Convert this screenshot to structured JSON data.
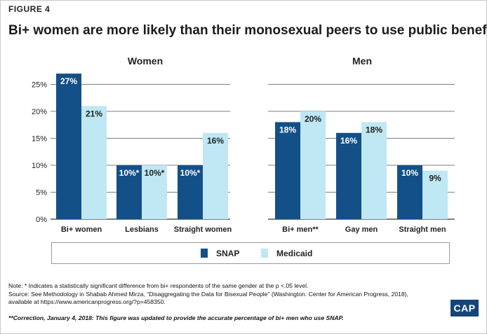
{
  "figure_label": "FIGURE 4",
  "title": "Bi+ women are more likely than their monosexual peers to use public benefits",
  "colors": {
    "snap": "#135087",
    "medicaid": "#bfe7f4",
    "grid": "#555555",
    "logo_bg": "#13467a"
  },
  "chart_data": [
    {
      "type": "bar",
      "title": "Women",
      "categories": [
        "Bi+ women",
        "Lesbians",
        "Straight women"
      ],
      "series": [
        {
          "name": "SNAP",
          "values": [
            27,
            10,
            10
          ],
          "labels": [
            "27%",
            "10%*",
            "10%*"
          ]
        },
        {
          "name": "Medicaid",
          "values": [
            21,
            10,
            16
          ],
          "labels": [
            "21%",
            "10%*",
            "16%"
          ]
        }
      ],
      "ylim": [
        0,
        27
      ],
      "yticks": [
        "0%",
        "5%",
        "10%",
        "15%",
        "20%",
        "25%"
      ],
      "grid": true
    },
    {
      "type": "bar",
      "title": "Men",
      "categories": [
        "Bi+ men**",
        "Gay men",
        "Straight men"
      ],
      "series": [
        {
          "name": "SNAP",
          "values": [
            18,
            16,
            10
          ],
          "labels": [
            "18%",
            "16%",
            "10%"
          ]
        },
        {
          "name": "Medicaid",
          "values": [
            20,
            18,
            9
          ],
          "labels": [
            "20%",
            "18%",
            "9%"
          ]
        }
      ],
      "ylim": [
        0,
        27
      ],
      "grid": true
    }
  ],
  "legend": {
    "items": [
      "SNAP",
      "Medicaid"
    ],
    "placement": "bottom"
  },
  "note": "Note: * Indicates a statistically significant difference from bi+ respondents of the same gender at the p <.05 level.",
  "source_line1": "Source: See Methodology in Shabab Ahmed Mirza, \"Disaggregating the Data for Bisexual People\" (Washington: Center for American Progress, 2018),",
  "source_line2": "available at https://www.americanprogress.org/?p=458350.",
  "correction": "**Correction, January 4, 2018: This figure was updated to provide the accurate percentage of bi+ men who use SNAP.",
  "logo_text": "CAP"
}
